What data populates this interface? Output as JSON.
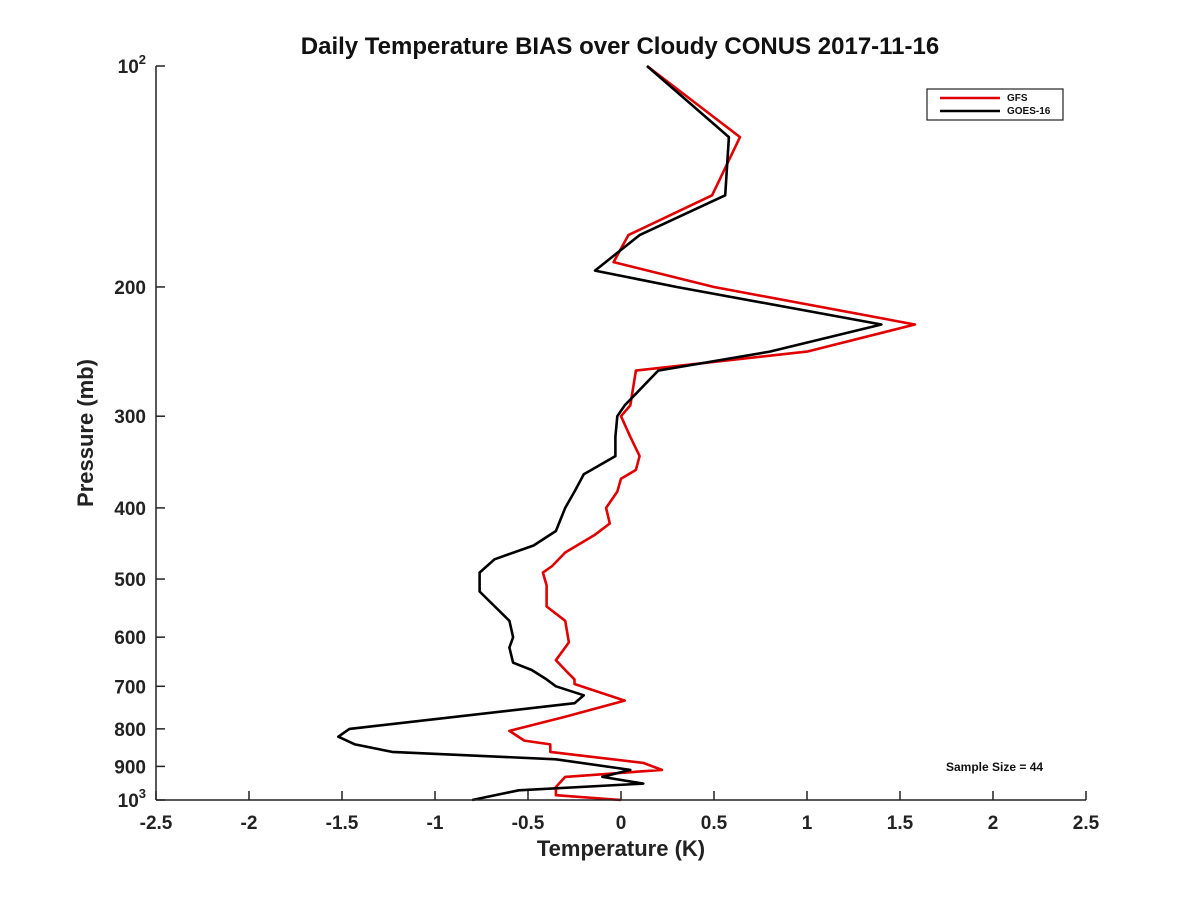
{
  "chart_data": {
    "type": "line",
    "title": "Daily Temperature BIAS over Cloudy CONUS 2017-11-16",
    "xlabel": "Temperature (K)",
    "ylabel": "Pressure (mb)",
    "xlim": [
      -2.5,
      2.5
    ],
    "ylim": [
      100,
      1000
    ],
    "y_scale": "log",
    "y_reversed": true,
    "x_ticks": [
      "-2.5",
      "-2",
      "-1.5",
      "-1",
      "-0.5",
      "0",
      "0.5",
      "1",
      "1.5",
      "2",
      "2.5"
    ],
    "x_tick_values": [
      -2.5,
      -2,
      -1.5,
      -1,
      -0.5,
      0,
      0.5,
      1,
      1.5,
      2,
      2.5
    ],
    "y_ticks": [
      {
        "value": 100,
        "base": "10",
        "exp": "2"
      },
      {
        "value": 200,
        "label": "200"
      },
      {
        "value": 300,
        "label": "300"
      },
      {
        "value": 400,
        "label": "400"
      },
      {
        "value": 500,
        "label": "500"
      },
      {
        "value": 600,
        "label": "600"
      },
      {
        "value": 700,
        "label": "700"
      },
      {
        "value": 800,
        "label": "800"
      },
      {
        "value": 900,
        "label": "900"
      },
      {
        "value": 1000,
        "base": "10",
        "exp": "3"
      }
    ],
    "grid": false,
    "legend_position": "top-right",
    "annotation": "Sample Size = 44",
    "series": [
      {
        "name": "GFS",
        "color": "#e00000",
        "points": [
          [
            0.14,
            100
          ],
          [
            0.64,
            125
          ],
          [
            0.49,
            150
          ],
          [
            0.04,
            170
          ],
          [
            -0.04,
            185
          ],
          [
            0.5,
            200
          ],
          [
            1.58,
            225
          ],
          [
            1.0,
            245
          ],
          [
            0.08,
            260
          ],
          [
            0.05,
            290
          ],
          [
            0.0,
            300
          ],
          [
            0.05,
            320
          ],
          [
            0.1,
            340
          ],
          [
            0.08,
            355
          ],
          [
            0.0,
            365
          ],
          [
            -0.02,
            380
          ],
          [
            -0.08,
            400
          ],
          [
            -0.06,
            420
          ],
          [
            -0.14,
            435
          ],
          [
            -0.3,
            460
          ],
          [
            -0.37,
            480
          ],
          [
            -0.42,
            490
          ],
          [
            -0.4,
            510
          ],
          [
            -0.4,
            545
          ],
          [
            -0.3,
            570
          ],
          [
            -0.28,
            610
          ],
          [
            -0.35,
            645
          ],
          [
            -0.3,
            665
          ],
          [
            -0.25,
            685
          ],
          [
            -0.25,
            695
          ],
          [
            0.02,
            732
          ],
          [
            -0.3,
            770
          ],
          [
            -0.6,
            805
          ],
          [
            -0.52,
            830
          ],
          [
            -0.38,
            840
          ],
          [
            -0.38,
            860
          ],
          [
            0.12,
            890
          ],
          [
            0.22,
            910
          ],
          [
            -0.3,
            930
          ],
          [
            -0.35,
            960
          ],
          [
            -0.35,
            985
          ],
          [
            0.0,
            1000
          ]
        ]
      },
      {
        "name": "GOES-16",
        "color": "#000000",
        "points": [
          [
            0.14,
            100
          ],
          [
            0.58,
            125
          ],
          [
            0.56,
            150
          ],
          [
            0.1,
            170
          ],
          [
            -0.14,
            190
          ],
          [
            0.3,
            200
          ],
          [
            1.4,
            225
          ],
          [
            0.8,
            245
          ],
          [
            0.2,
            260
          ],
          [
            0.02,
            290
          ],
          [
            -0.02,
            300
          ],
          [
            -0.03,
            320
          ],
          [
            -0.03,
            340
          ],
          [
            -0.2,
            360
          ],
          [
            -0.25,
            380
          ],
          [
            -0.3,
            400
          ],
          [
            -0.35,
            430
          ],
          [
            -0.47,
            450
          ],
          [
            -0.68,
            470
          ],
          [
            -0.76,
            490
          ],
          [
            -0.76,
            520
          ],
          [
            -0.6,
            570
          ],
          [
            -0.58,
            600
          ],
          [
            -0.6,
            620
          ],
          [
            -0.58,
            650
          ],
          [
            -0.48,
            665
          ],
          [
            -0.4,
            685
          ],
          [
            -0.35,
            700
          ],
          [
            -0.2,
            720
          ],
          [
            -0.25,
            738
          ],
          [
            -1.46,
            800
          ],
          [
            -1.52,
            820
          ],
          [
            -1.43,
            840
          ],
          [
            -1.23,
            860
          ],
          [
            -0.35,
            880
          ],
          [
            0.05,
            910
          ],
          [
            -0.1,
            930
          ],
          [
            0.12,
            950
          ],
          [
            -0.55,
            970
          ],
          [
            -0.8,
            1000
          ]
        ]
      }
    ]
  }
}
